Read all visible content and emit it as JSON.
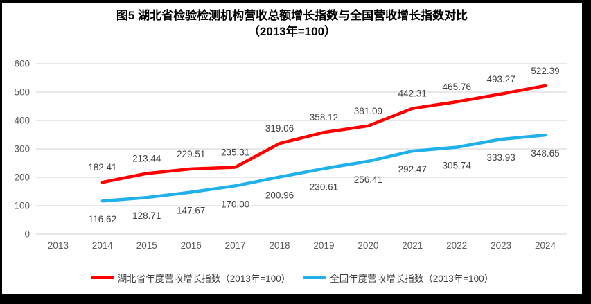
{
  "title": {
    "line1": "图5 湖北省检验检测机构营收总额增长指数与全国营收增长指数对比",
    "line2": "（2013年=100）"
  },
  "chart_data": {
    "type": "line",
    "title": "图5 湖北省检验检测机构营收总额增长指数与全国营收增长指数对比（2013年=100）",
    "x_years": [
      2013,
      2014,
      2015,
      2016,
      2017,
      2018,
      2019,
      2020,
      2021,
      2022,
      2023,
      2024
    ],
    "series": [
      {
        "name": "湖北省年度营收增长指数（2013年=100）",
        "color": "#FF0000",
        "start_year": 2014,
        "label_position": "above",
        "values": [
          182.41,
          213.44,
          229.51,
          235.31,
          319.06,
          358.12,
          381.09,
          442.31,
          465.76,
          493.27,
          522.39
        ]
      },
      {
        "name": "全国年度营收增长指数（2013年=100）",
        "color": "#20B1EA",
        "start_year": 2014,
        "label_position": "below",
        "values": [
          116.62,
          128.71,
          147.67,
          170.0,
          200.96,
          230.61,
          256.41,
          292.47,
          305.74,
          333.93,
          348.65
        ]
      }
    ],
    "ylim": [
      0,
      600
    ],
    "ytick_step": 100,
    "grid": true,
    "legend_position": "bottom",
    "data_label_decimals": 2
  },
  "colors": {
    "frame": "#000000",
    "background": "#FFFFFF",
    "gridline": "#D9D9D9",
    "axis_text": "#595959",
    "data_label": "#404040",
    "title_text": "#000000"
  }
}
